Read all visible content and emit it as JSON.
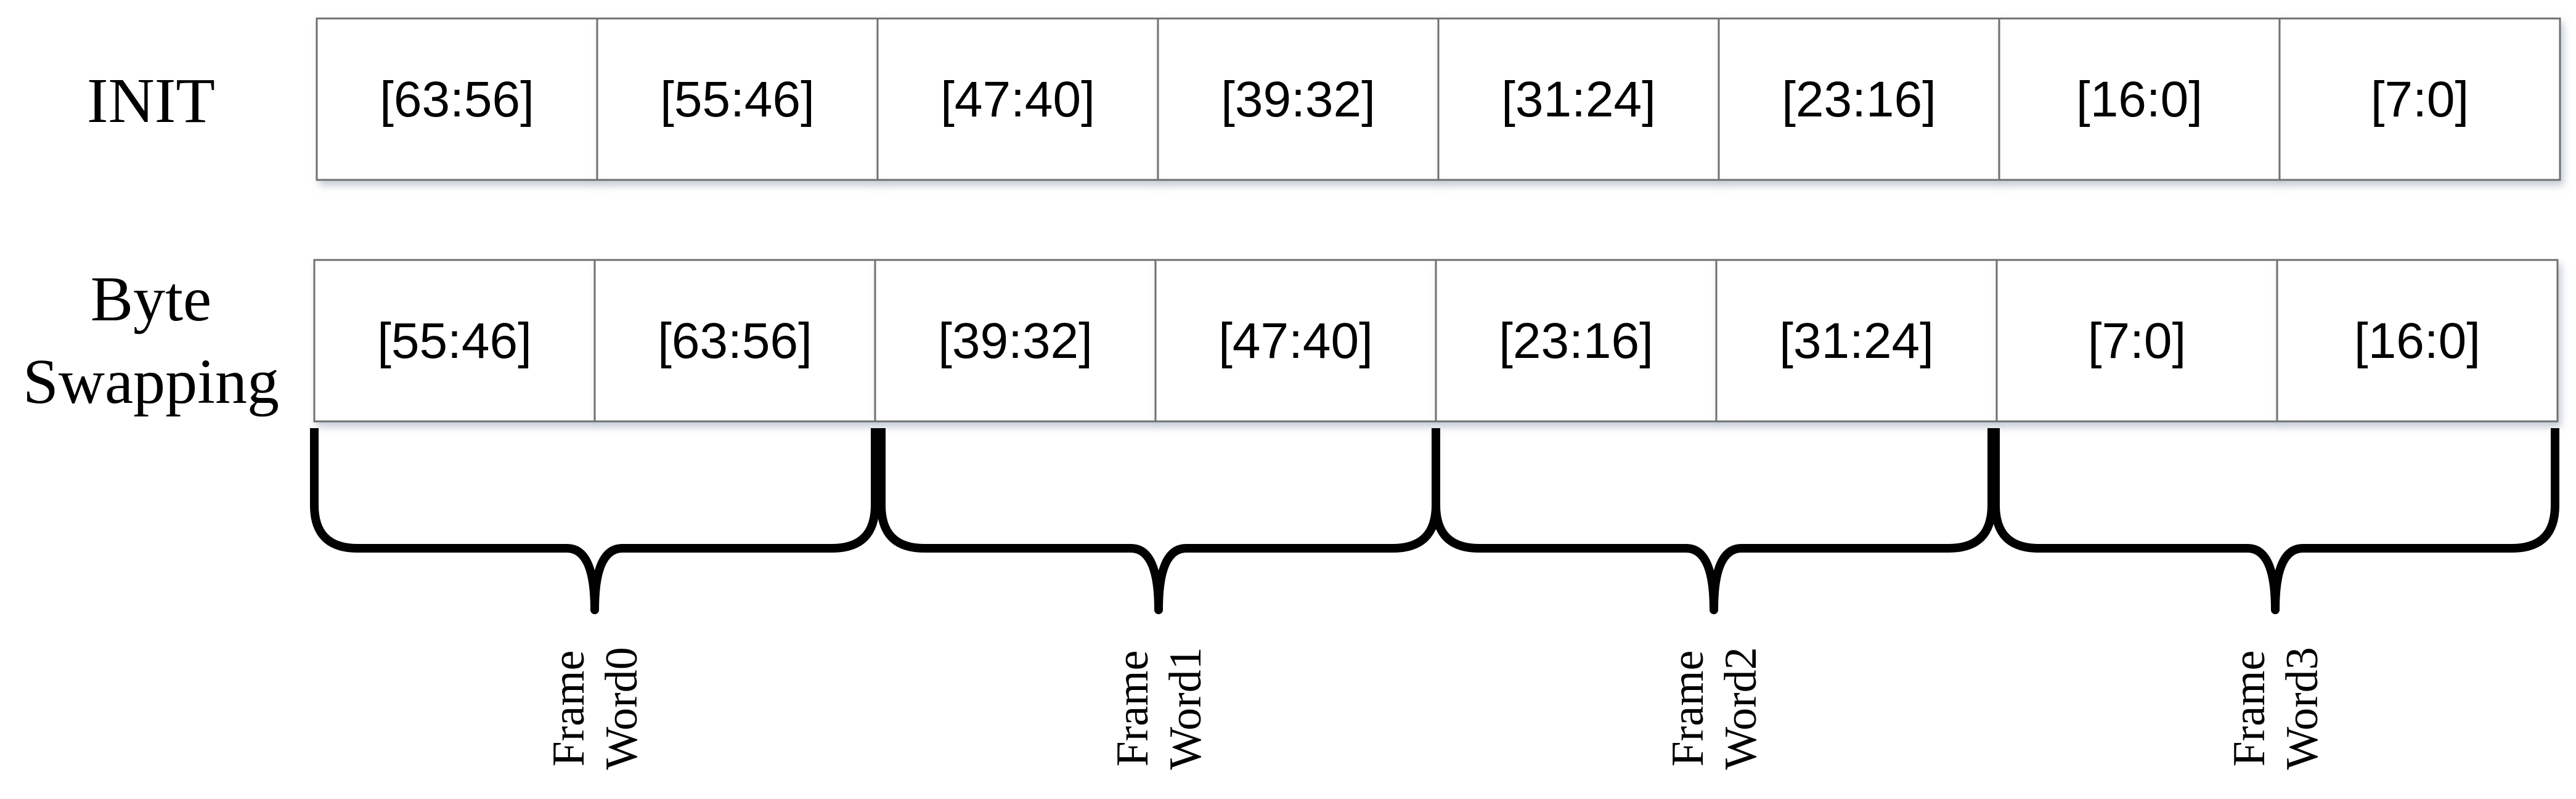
{
  "rows": [
    {
      "label_lines": [
        "INIT"
      ],
      "cells": [
        "[63:56]",
        "[55:46]",
        "[47:40]",
        "[39:32]",
        "[31:24]",
        "[23:16]",
        "[16:0]",
        "[7:0]"
      ]
    },
    {
      "label_lines": [
        "Byte",
        "Swapping"
      ],
      "cells": [
        "[55:46]",
        "[63:56]",
        "[39:32]",
        "[47:40]",
        "[23:16]",
        "[31:24]",
        "[7:0]",
        "[16:0]"
      ]
    }
  ],
  "frame_words": [
    [
      "Frame",
      "Word0"
    ],
    [
      "Frame",
      "Word1"
    ],
    [
      "Frame",
      "Word2"
    ],
    [
      "Frame",
      "Word3"
    ]
  ]
}
